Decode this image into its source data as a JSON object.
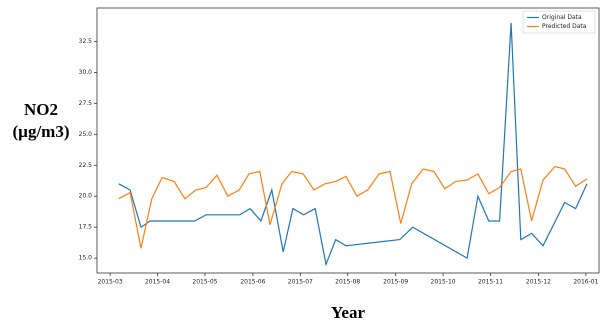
{
  "chart_data": {
    "type": "line",
    "ylabel": [
      "NO2",
      "(µg/m3)"
    ],
    "xlabel": "Year",
    "xlim": [
      2015.144,
      2016.023
    ],
    "xticks": [
      {
        "value": 2015.167,
        "label": "2015-03"
      },
      {
        "value": 2015.25,
        "label": "2015-04"
      },
      {
        "value": 2015.333,
        "label": "2015-05"
      },
      {
        "value": 2015.417,
        "label": "2015-06"
      },
      {
        "value": 2015.5,
        "label": "2015-07"
      },
      {
        "value": 2015.583,
        "label": "2015-08"
      },
      {
        "value": 2015.667,
        "label": "2015-09"
      },
      {
        "value": 2015.75,
        "label": "2015-10"
      },
      {
        "value": 2015.833,
        "label": "2015-11"
      },
      {
        "value": 2015.917,
        "label": "2015-12"
      },
      {
        "value": 2016.0,
        "label": "2016-01"
      }
    ],
    "ylim": [
      13.8,
      35.2
    ],
    "yticks": [
      {
        "value": 15,
        "label": "15.0"
      },
      {
        "value": 17.5,
        "label": "17.5"
      },
      {
        "value": 20,
        "label": "20.0"
      },
      {
        "value": 22.5,
        "label": "22.5"
      },
      {
        "value": 25,
        "label": "25.0"
      },
      {
        "value": 27.5,
        "label": "27.5"
      },
      {
        "value": 30,
        "label": "30.0"
      },
      {
        "value": 32.5,
        "label": "32.5"
      }
    ],
    "legend": "upper right",
    "series": [
      {
        "name": "Original Data",
        "color": "#1f77b4",
        "x": [
          2015.182,
          2015.202,
          2015.221,
          2015.237,
          2015.254,
          2015.275,
          2015.294,
          2015.315,
          2015.335,
          2015.356,
          2015.377,
          2015.394,
          2015.412,
          2015.431,
          2015.45,
          2015.47,
          2015.487,
          2015.506,
          2015.526,
          2015.545,
          2015.562,
          2015.58,
          2015.674,
          2015.697,
          2015.792,
          2015.811,
          2015.83,
          2015.849,
          2015.869,
          2015.886,
          2015.905,
          2015.925,
          2015.963,
          2015.982,
          2016.002
        ],
        "values": [
          21.0,
          20.5,
          17.5,
          18.0,
          18.0,
          18.0,
          18.0,
          18.0,
          18.5,
          18.5,
          18.5,
          18.5,
          19.0,
          18.0,
          20.5,
          15.5,
          19.0,
          18.5,
          19.0,
          14.5,
          16.5,
          16.0,
          16.5,
          17.5,
          15.0,
          20.0,
          18.0,
          18.0,
          34.0,
          16.5,
          17.0,
          16.0,
          19.5,
          19.0,
          21.0
        ]
      },
      {
        "name": "Predicted Data",
        "color": "#ff7f0e",
        "x": [
          2015.182,
          2015.202,
          2015.221,
          2015.24,
          2015.258,
          2015.279,
          2015.298,
          2015.317,
          2015.335,
          2015.354,
          2015.373,
          2015.393,
          2015.41,
          2015.429,
          2015.447,
          2015.468,
          2015.485,
          2015.505,
          2015.524,
          2015.543,
          2015.562,
          2015.58,
          2015.599,
          2015.618,
          2015.638,
          2015.657,
          2015.676,
          2015.695,
          2015.715,
          2015.734,
          2015.753,
          2015.772,
          2015.792,
          2015.811,
          2015.83,
          2015.849,
          2015.869,
          2015.886,
          2015.905,
          2015.925,
          2015.946,
          2015.963,
          2015.982,
          2016.002
        ],
        "values": [
          19.8,
          20.3,
          15.8,
          19.8,
          21.5,
          21.2,
          19.8,
          20.5,
          20.7,
          21.7,
          20.0,
          20.5,
          21.8,
          22.0,
          17.7,
          21.0,
          22.0,
          21.8,
          20.5,
          21.0,
          21.2,
          21.6,
          20.0,
          20.5,
          21.8,
          22.0,
          17.8,
          21.0,
          22.2,
          22.0,
          20.6,
          21.2,
          21.3,
          21.8,
          20.2,
          20.7,
          22.0,
          22.2,
          18.0,
          21.3,
          22.4,
          22.2,
          20.8,
          21.4
        ]
      }
    ]
  }
}
